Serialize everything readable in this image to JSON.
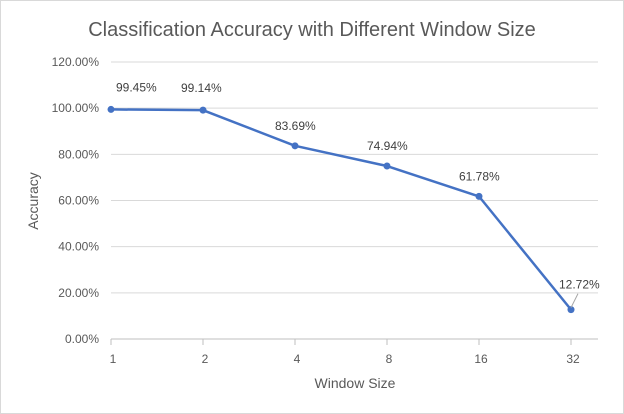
{
  "chart_data": {
    "type": "line",
    "title": "Classification Accuracy with Different Window Size",
    "xlabel": "Window Size",
    "ylabel": "Accuracy",
    "categories": [
      "1",
      "2",
      "4",
      "8",
      "16",
      "32"
    ],
    "series": [
      {
        "values": [
          99.45,
          99.14,
          83.69,
          74.94,
          61.78,
          12.72
        ],
        "data_labels": [
          "99.45%",
          "99.14%",
          "83.69%",
          "74.94%",
          "61.78%",
          "12.72%"
        ],
        "color": "#4472c4"
      }
    ],
    "ylim": [
      0,
      120
    ],
    "yticks": [
      "0.00%",
      "20.00%",
      "40.00%",
      "60.00%",
      "80.00%",
      "100.00%",
      "120.00%"
    ],
    "grid": "horizontal",
    "legend": "none"
  }
}
